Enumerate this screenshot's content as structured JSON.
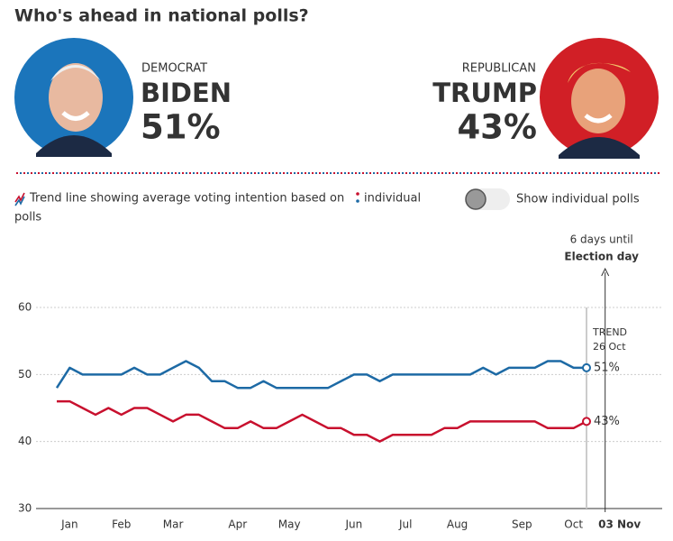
{
  "title": "Who's ahead in national polls?",
  "candidates": [
    {
      "party": "DEMOCRAT",
      "share": "51%"
    },
    {
      "party": "REPUBLICAN",
      "share": "43%"
    }
  ],
  "legend": {
    "text": "Trend line showing average voting intention based on",
    "link": "individual",
    "text2": "polls",
    "toggle": "Show individual polls"
  },
  "chart_data": {
    "type": "line",
    "categories": [
      null,
      "Jan",
      null,
      null,
      null,
      "Feb",
      null,
      null,
      null,
      "Mar",
      null,
      null,
      null,
      null,
      "Apr",
      null,
      null,
      null,
      "May",
      null,
      null,
      null,
      null,
      "Jun",
      null,
      null,
      null,
      "Jul",
      null,
      null,
      null,
      "Aug",
      null,
      null,
      null,
      null,
      "Sep",
      null,
      null,
      null,
      "Oct",
      null,
      null,
      "03 Nov"
    ],
    "series": [
      {
        "name": "BIDEN",
        "color": "#1d6aa5",
        "values": [
          48,
          51,
          50,
          50,
          50,
          50,
          51,
          50,
          50,
          51,
          52,
          51,
          49,
          49,
          48,
          48,
          49,
          48,
          48,
          48,
          48,
          48,
          49,
          50,
          50,
          49,
          50,
          50,
          50,
          50,
          50,
          50,
          50,
          51,
          50,
          51,
          51,
          51,
          52,
          52,
          51,
          51,
          null,
          null
        ],
        "value_labels": [
          null,
          null,
          null,
          null,
          null,
          null,
          null,
          null,
          null,
          null,
          null,
          null,
          null,
          null,
          null,
          null,
          null,
          null,
          null,
          null,
          null,
          null,
          null,
          null,
          null,
          null,
          null,
          null,
          null,
          null,
          null,
          null,
          null,
          null,
          null,
          null,
          null,
          null,
          null,
          null,
          null,
          "51%",
          null,
          null
        ]
      },
      {
        "name": "TRUMP",
        "color": "#c8102e",
        "values": [
          46,
          46,
          45,
          44,
          45,
          44,
          45,
          45,
          44,
          43,
          44,
          44,
          43,
          42,
          42,
          43,
          42,
          42,
          43,
          44,
          43,
          42,
          42,
          41,
          41,
          40,
          41,
          41,
          41,
          41,
          42,
          42,
          43,
          43,
          43,
          43,
          43,
          43,
          42,
          42,
          42,
          43,
          null,
          null
        ],
        "value_labels": [
          null,
          null,
          null,
          null,
          null,
          null,
          null,
          null,
          null,
          null,
          null,
          null,
          null,
          null,
          null,
          null,
          null,
          null,
          null,
          null,
          null,
          null,
          null,
          null,
          null,
          null,
          null,
          null,
          null,
          null,
          null,
          null,
          null,
          null,
          null,
          null,
          null,
          null,
          null,
          null,
          null,
          "43%",
          null,
          null
        ]
      }
    ],
    "ylim": [
      30,
      60
    ],
    "yticks": [
      30,
      40,
      50,
      60
    ],
    "grid": true,
    "trend_label": "TREND",
    "trend_date": "26 Oct",
    "election_note": "6 days until",
    "election_label": "Election day"
  }
}
